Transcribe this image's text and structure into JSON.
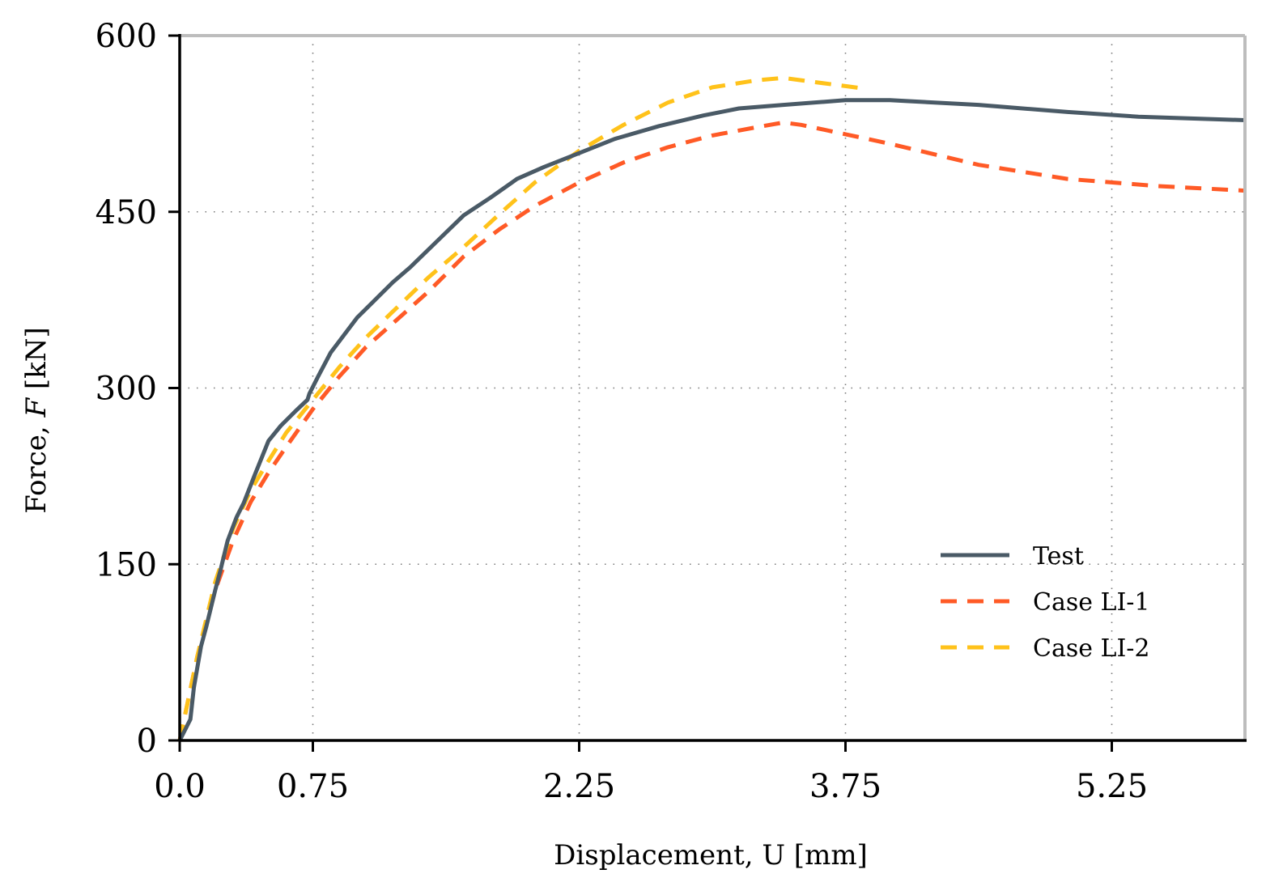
{
  "chart_data": {
    "type": "line",
    "title": "",
    "xlabel": "Displacement, U [mm]",
    "ylabel": "Force, F [kN]",
    "ylabel_prefix": "Force, ",
    "ylabel_symbol": "F",
    "ylabel_suffix": " [kN]",
    "xlim": [
      0,
      6.0
    ],
    "ylim": [
      0,
      600
    ],
    "x_ticks": [
      0.0,
      0.75,
      2.25,
      3.75,
      5.25
    ],
    "x_tick_labels": [
      "0.0",
      "0.75",
      "2.25",
      "3.75",
      "5.25"
    ],
    "y_ticks": [
      0,
      150,
      300,
      450,
      600
    ],
    "y_tick_labels": [
      "0",
      "150",
      "300",
      "450",
      "600"
    ],
    "grid": true,
    "legend_position": "lower-right",
    "series": [
      {
        "name": "Test",
        "color": "#4a5a66",
        "style": "solid",
        "x": [
          0.0,
          0.06,
          0.08,
          0.12,
          0.15,
          0.2,
          0.23,
          0.27,
          0.32,
          0.36,
          0.42,
          0.5,
          0.57,
          0.65,
          0.72,
          0.73,
          0.78,
          0.85,
          0.9,
          1.0,
          1.08,
          1.2,
          1.3,
          1.45,
          1.6,
          1.75,
          1.9,
          2.05,
          2.25,
          2.45,
          2.7,
          2.95,
          3.15,
          3.4,
          3.75,
          4.0,
          4.5,
          5.0,
          5.4,
          6.0
        ],
        "y": [
          0,
          18,
          45,
          80,
          97,
          128,
          145,
          170,
          190,
          202,
          225,
          255,
          268,
          280,
          290,
          295,
          310,
          330,
          340,
          360,
          372,
          390,
          403,
          425,
          447,
          462,
          478,
          488,
          500,
          512,
          523,
          532,
          538,
          541,
          545,
          545,
          541,
          535,
          531,
          528
        ]
      },
      {
        "name": "Case LI-1",
        "color": "#ff5a26",
        "style": "dashed",
        "x": [
          0.0,
          0.1,
          0.2,
          0.3,
          0.4,
          0.5,
          0.6,
          0.75,
          0.9,
          1.05,
          1.2,
          1.4,
          1.6,
          1.8,
          2.0,
          2.25,
          2.5,
          2.75,
          3.0,
          3.25,
          3.4,
          3.5,
          3.75,
          4.0,
          4.5,
          5.0,
          5.5,
          6.0
        ],
        "y": [
          0,
          72,
          128,
          170,
          203,
          228,
          250,
          282,
          310,
          335,
          355,
          382,
          412,
          435,
          455,
          475,
          492,
          505,
          515,
          522,
          526,
          524,
          516,
          508,
          490,
          478,
          472,
          468
        ]
      },
      {
        "name": "Case LI-2",
        "color": "#ffc21a",
        "style": "dashed",
        "x": [
          0.0,
          0.1,
          0.2,
          0.3,
          0.4,
          0.5,
          0.6,
          0.75,
          0.9,
          1.05,
          1.2,
          1.4,
          1.6,
          1.8,
          2.0,
          2.25,
          2.5,
          2.75,
          3.0,
          3.25,
          3.4,
          3.6,
          3.75,
          3.85
        ],
        "y": [
          0,
          72,
          135,
          180,
          213,
          238,
          262,
          290,
          318,
          343,
          365,
          394,
          420,
          448,
          475,
          502,
          524,
          543,
          556,
          562,
          564,
          560,
          557,
          555
        ]
      }
    ]
  }
}
